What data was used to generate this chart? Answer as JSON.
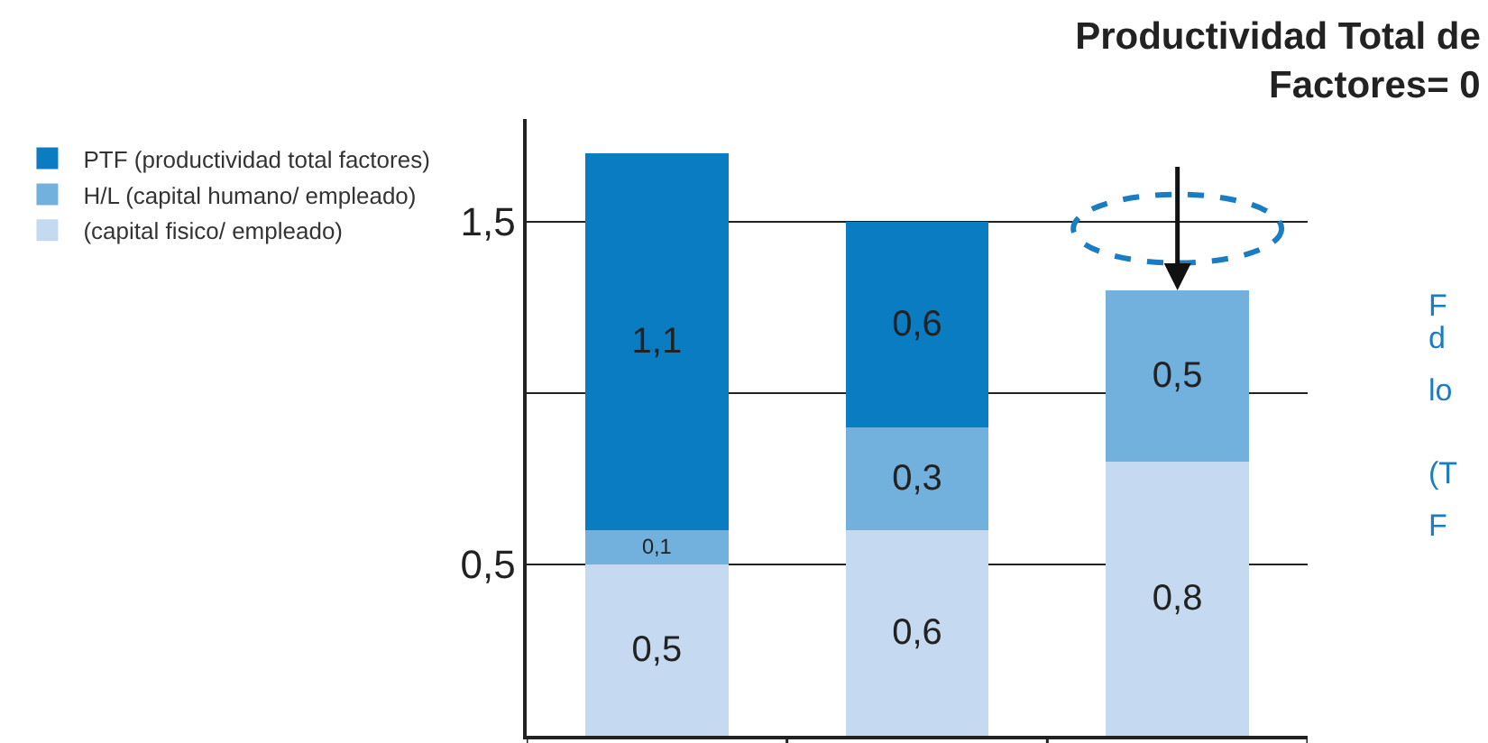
{
  "chart_data": {
    "type": "bar",
    "stacked": true,
    "title": "Productividad Total de\nFactores= 0",
    "categories": [
      null,
      null,
      null
    ],
    "series": [
      {
        "name": "(capital fisico/ empleado)",
        "color": "#c5daf0",
        "values": [
          0.5,
          0.6,
          0.8
        ],
        "value_labels": [
          "0,5",
          "0,6",
          "0,8"
        ]
      },
      {
        "name": "H/L (capital humano/ empleado)",
        "color": "#72b0de",
        "values": [
          0.1,
          0.3,
          0.5
        ],
        "value_labels": [
          "0,1",
          "0,3",
          "0,5"
        ]
      },
      {
        "name": "PTF (productividad total factores)",
        "color": "#0a7cc2",
        "values": [
          1.1,
          0.6,
          null
        ],
        "value_labels": [
          "1,1",
          "0,6",
          null
        ]
      }
    ],
    "ylim": [
      0,
      1.8
    ],
    "yticks": [
      {
        "value": 0.5,
        "label": "0,5"
      },
      {
        "value": 1.0,
        "label": null
      },
      {
        "value": 1.5,
        "label": "1,5"
      }
    ],
    "grid": "y",
    "legend": "left",
    "annotations": [
      "F",
      "d",
      "lo",
      "(T",
      "F"
    ]
  }
}
